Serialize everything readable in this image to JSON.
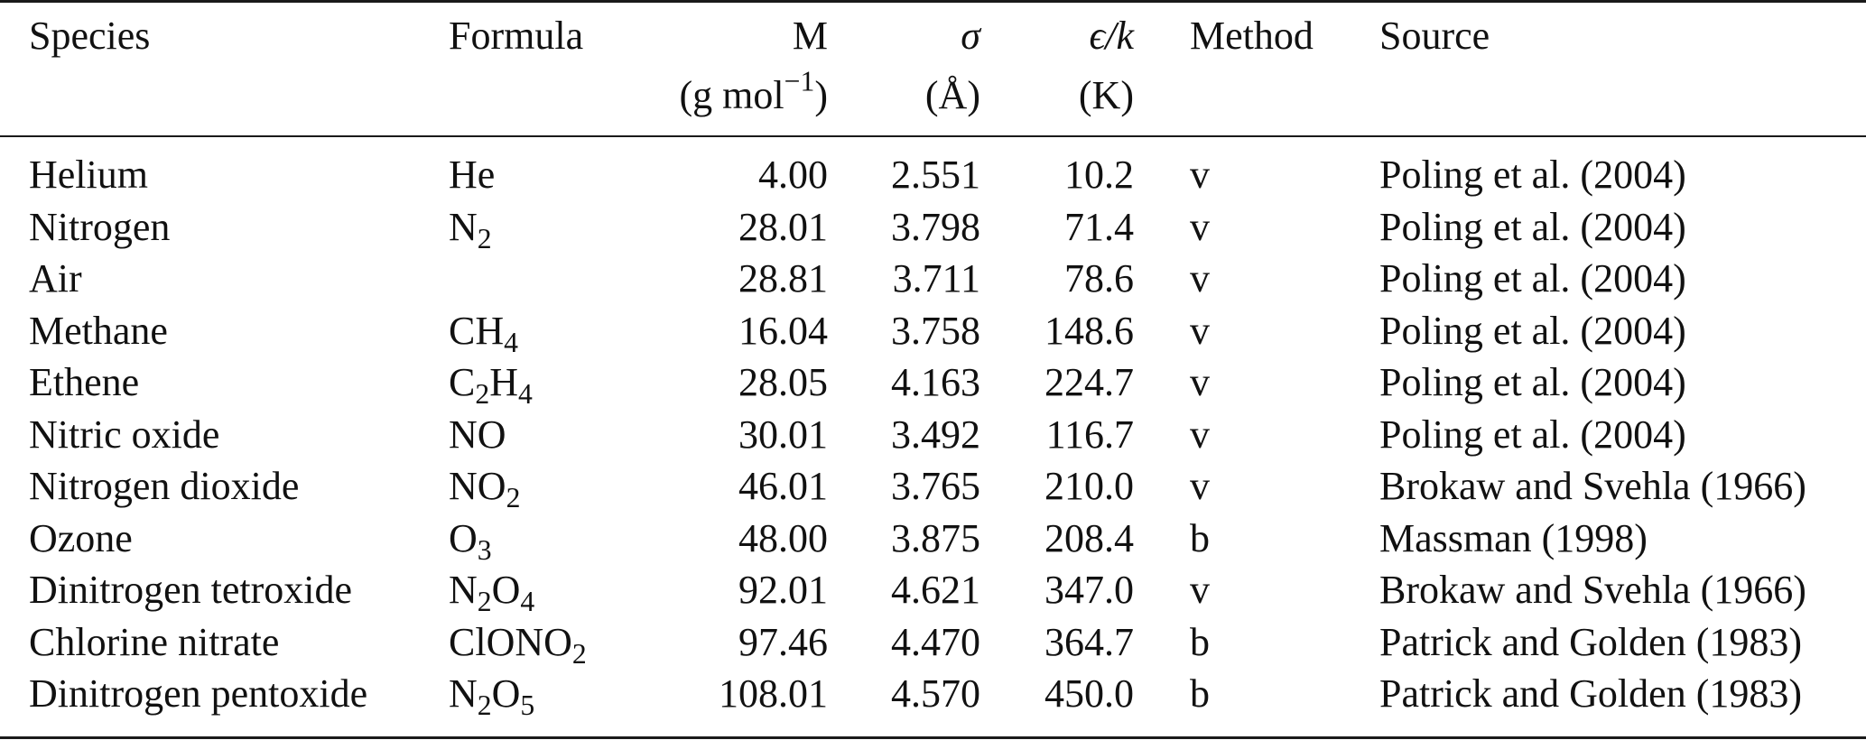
{
  "table": {
    "headers": {
      "species": "Species",
      "formula": "Formula",
      "m": "M",
      "m_unit": "(g mol−1)",
      "sigma": "σ",
      "sigma_unit": "(Å)",
      "eps": "ϵ/k",
      "eps_unit": "(K)",
      "method": "Method",
      "source": "Source"
    },
    "rows": [
      {
        "species": "Helium",
        "formula": "He",
        "m": "4.00",
        "sigma": "2.551",
        "eps": "10.2",
        "method": "v",
        "source": "Poling et al. (2004)"
      },
      {
        "species": "Nitrogen",
        "formula": "N2",
        "m": "28.01",
        "sigma": "3.798",
        "eps": "71.4",
        "method": "v",
        "source": "Poling et al. (2004)"
      },
      {
        "species": "Air",
        "formula": "",
        "m": "28.81",
        "sigma": "3.711",
        "eps": "78.6",
        "method": "v",
        "source": "Poling et al. (2004)"
      },
      {
        "species": "Methane",
        "formula": "CH4",
        "m": "16.04",
        "sigma": "3.758",
        "eps": "148.6",
        "method": "v",
        "source": "Poling et al. (2004)"
      },
      {
        "species": "Ethene",
        "formula": "C2H4",
        "m": "28.05",
        "sigma": "4.163",
        "eps": "224.7",
        "method": "v",
        "source": "Poling et al. (2004)"
      },
      {
        "species": "Nitric oxide",
        "formula": "NO",
        "m": "30.01",
        "sigma": "3.492",
        "eps": "116.7",
        "method": "v",
        "source": "Poling et al. (2004)"
      },
      {
        "species": "Nitrogen dioxide",
        "formula": "NO2",
        "m": "46.01",
        "sigma": "3.765",
        "eps": "210.0",
        "method": "v",
        "source": "Brokaw and Svehla (1966)"
      },
      {
        "species": "Ozone",
        "formula": "O3",
        "m": "48.00",
        "sigma": "3.875",
        "eps": "208.4",
        "method": "b",
        "source": "Massman (1998)"
      },
      {
        "species": "Dinitrogen tetroxide",
        "formula": "N2O4",
        "m": "92.01",
        "sigma": "4.621",
        "eps": "347.0",
        "method": "v",
        "source": "Brokaw and Svehla (1966)"
      },
      {
        "species": "Chlorine nitrate",
        "formula": "ClONO2",
        "m": "97.46",
        "sigma": "4.470",
        "eps": "364.7",
        "method": "b",
        "source": "Patrick and Golden (1983)"
      },
      {
        "species": "Dinitrogen pentoxide",
        "formula": "N2O5",
        "m": "108.01",
        "sigma": "4.570",
        "eps": "450.0",
        "method": "b",
        "source": "Patrick and Golden (1983)"
      }
    ]
  }
}
